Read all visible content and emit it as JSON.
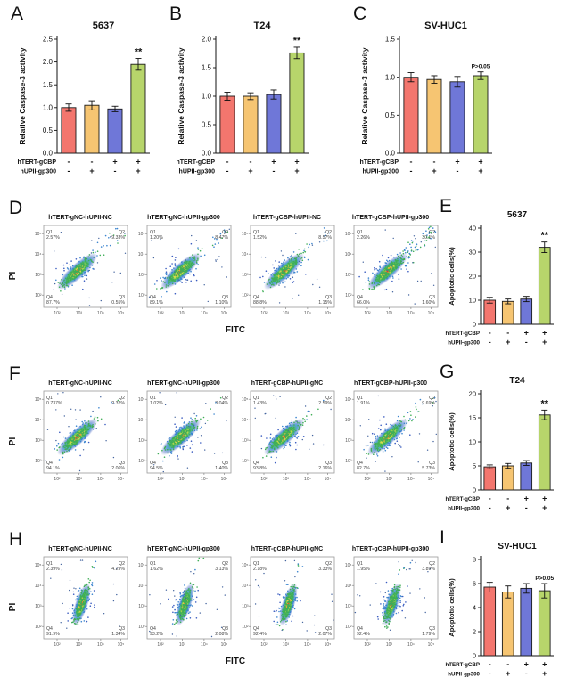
{
  "colors": {
    "bar_fills": [
      "#F3766E",
      "#F6C572",
      "#6F77D8",
      "#B7D56B"
    ],
    "bar_edge": "#1a1a1a"
  },
  "condition_rows": [
    {
      "label": "hTERT-gCBP",
      "values": [
        "-",
        "-",
        "+",
        "+"
      ]
    },
    {
      "label": "hUPII-gp300",
      "values": [
        "-",
        "+",
        "-",
        "+"
      ]
    }
  ],
  "chart_data": [
    {
      "type": "bar",
      "panel_label": "A",
      "title": "5637",
      "ylabel": "Relative Caspase-3 activity",
      "ylim": [
        0,
        2.5
      ],
      "yticks": [
        0,
        0.5,
        1.0,
        1.5,
        2.0,
        2.5
      ],
      "tick_fmt": "1dp",
      "values": [
        1.0,
        1.05,
        0.97,
        1.95
      ],
      "errors": [
        0.08,
        0.1,
        0.06,
        0.13
      ],
      "sig_label": "**",
      "sig_bar_index": 3
    },
    {
      "type": "bar",
      "panel_label": "B",
      "title": "T24",
      "ylabel": "Relative Caspase-3 activity",
      "ylim": [
        0,
        2.0
      ],
      "yticks": [
        0,
        0.5,
        1.0,
        1.5,
        2.0
      ],
      "tick_fmt": "1dp",
      "values": [
        1.0,
        1.0,
        1.03,
        1.76
      ],
      "errors": [
        0.07,
        0.06,
        0.08,
        0.1
      ],
      "sig_label": "**",
      "sig_bar_index": 3
    },
    {
      "type": "bar",
      "panel_label": "C",
      "title": "SV-HUC1",
      "ylabel": "Relative Caspase-3 activity",
      "ylim": [
        0,
        1.5
      ],
      "yticks": [
        0,
        0.5,
        1.0,
        1.5
      ],
      "tick_fmt": "1dp",
      "values": [
        1.0,
        0.97,
        0.94,
        1.02
      ],
      "errors": [
        0.06,
        0.05,
        0.07,
        0.05
      ],
      "sig_label": "P>0.05",
      "sig_bar_index": 3
    },
    {
      "type": "bar",
      "panel_label": "E",
      "title": "5637",
      "ylabel": "Apoptotic cells(%)",
      "ylim": [
        0,
        40
      ],
      "yticks": [
        0,
        10,
        20,
        30,
        40
      ],
      "tick_fmt": "int",
      "values": [
        10,
        9.5,
        10.5,
        32
      ],
      "errors": [
        1.2,
        1.0,
        1.1,
        2.2
      ],
      "sig_label": "**",
      "sig_bar_index": 3
    },
    {
      "type": "bar",
      "panel_label": "G",
      "title": "T24",
      "ylabel": "Apoptotic cells(%)",
      "ylim": [
        0,
        20
      ],
      "yticks": [
        0,
        5,
        10,
        15,
        20
      ],
      "tick_fmt": "int",
      "values": [
        4.8,
        5.0,
        5.6,
        15.6
      ],
      "errors": [
        0.4,
        0.5,
        0.5,
        1.0
      ],
      "sig_label": "**",
      "sig_bar_index": 3
    },
    {
      "type": "bar",
      "panel_label": "I",
      "title": "SV-HUC1",
      "ylabel": "Apoptotic cells(%)",
      "ylim": [
        0,
        8
      ],
      "yticks": [
        0,
        2,
        4,
        6,
        8
      ],
      "tick_fmt": "int",
      "values": [
        5.7,
        5.3,
        5.6,
        5.4
      ],
      "errors": [
        0.4,
        0.5,
        0.4,
        0.6
      ],
      "sig_label": "P>0.05",
      "sig_bar_index": 3
    }
  ],
  "flow": {
    "xlabel": "FITC",
    "ylabel": "PI",
    "ytick_labels": [
      "10⁵",
      "10⁴",
      "10³",
      "10²"
    ],
    "xtick_labels": [
      "10²",
      "10³",
      "10⁴",
      "10⁵"
    ],
    "rows": [
      {
        "panel_label": "D",
        "cell_line": "5637",
        "show_xlabel": true,
        "plots": [
          {
            "title": "hTERT-gNC-hUPII-NC",
            "quadrants": {
              "Q1": "2.57%",
              "Q2": "9.33%",
              "Q3": "0.55%",
              "Q4": "87.7%"
            }
          },
          {
            "title": "hTERT-gNC-hUPII-gp300",
            "quadrants": {
              "Q1": "1.20%",
              "Q2": "8.47%",
              "Q3": "1.10%",
              "Q4": "89.1%"
            }
          },
          {
            "title": "hTERT-gCBP-hUPII-NC",
            "quadrants": {
              "Q1": "1.52%",
              "Q2": "8.57%",
              "Q3": "1.15%",
              "Q4": "88.8%"
            }
          },
          {
            "title": "hTERT-gCBP-hUPII-gp300",
            "quadrants": {
              "Q1": "2.26%",
              "Q2": "30.1%",
              "Q3": "1.60%",
              "Q4": "66.0%"
            }
          }
        ]
      },
      {
        "panel_label": "F",
        "cell_line": "T24",
        "show_xlabel": false,
        "plots": [
          {
            "title": "hTERT-gNC-hUPII-NC",
            "quadrants": {
              "Q1": "0.737%",
              "Q2": "2.32%",
              "Q3": "2.06%",
              "Q4": "94.1%"
            }
          },
          {
            "title": "hTERT-gNC-hUPII-gp300",
            "quadrants": {
              "Q1": "1.02%",
              "Q2": "3.04%",
              "Q3": "1.40%",
              "Q4": "94.5%"
            }
          },
          {
            "title": "hTERT-gCBP-hUPII-gNC",
            "quadrants": {
              "Q1": "1.43%",
              "Q2": "2.59%",
              "Q3": "2.16%",
              "Q4": "93.8%"
            }
          },
          {
            "title": "hTERT-gCBP-hUPII-p300",
            "quadrants": {
              "Q1": "1.91%",
              "Q2": "9.69%",
              "Q3": "5.73%",
              "Q4": "82.7%"
            }
          }
        ]
      },
      {
        "panel_label": "H",
        "cell_line": "SV-HUC1",
        "show_xlabel": true,
        "plots": [
          {
            "title": "hTERT-gNC-hUPII-NC",
            "quadrants": {
              "Q1": "2.39%",
              "Q2": "4.29%",
              "Q3": "1.34%",
              "Q4": "91.9%"
            }
          },
          {
            "title": "hTERT-gNC-hUPII-gp300",
            "quadrants": {
              "Q1": "1.62%",
              "Q2": "3.13%",
              "Q3": "2.08%",
              "Q4": "93.2%"
            }
          },
          {
            "title": "hTERT-gCBP-hUPII-gNC",
            "quadrants": {
              "Q1": "2.18%",
              "Q2": "3.33%",
              "Q3": "2.07%",
              "Q4": "92.4%"
            }
          },
          {
            "title": "hTERT-gCBP-hUPII-gp300",
            "quadrants": {
              "Q1": "1.95%",
              "Q2": "3.89%",
              "Q3": "1.79%",
              "Q4": "92.4%"
            }
          }
        ]
      }
    ]
  }
}
